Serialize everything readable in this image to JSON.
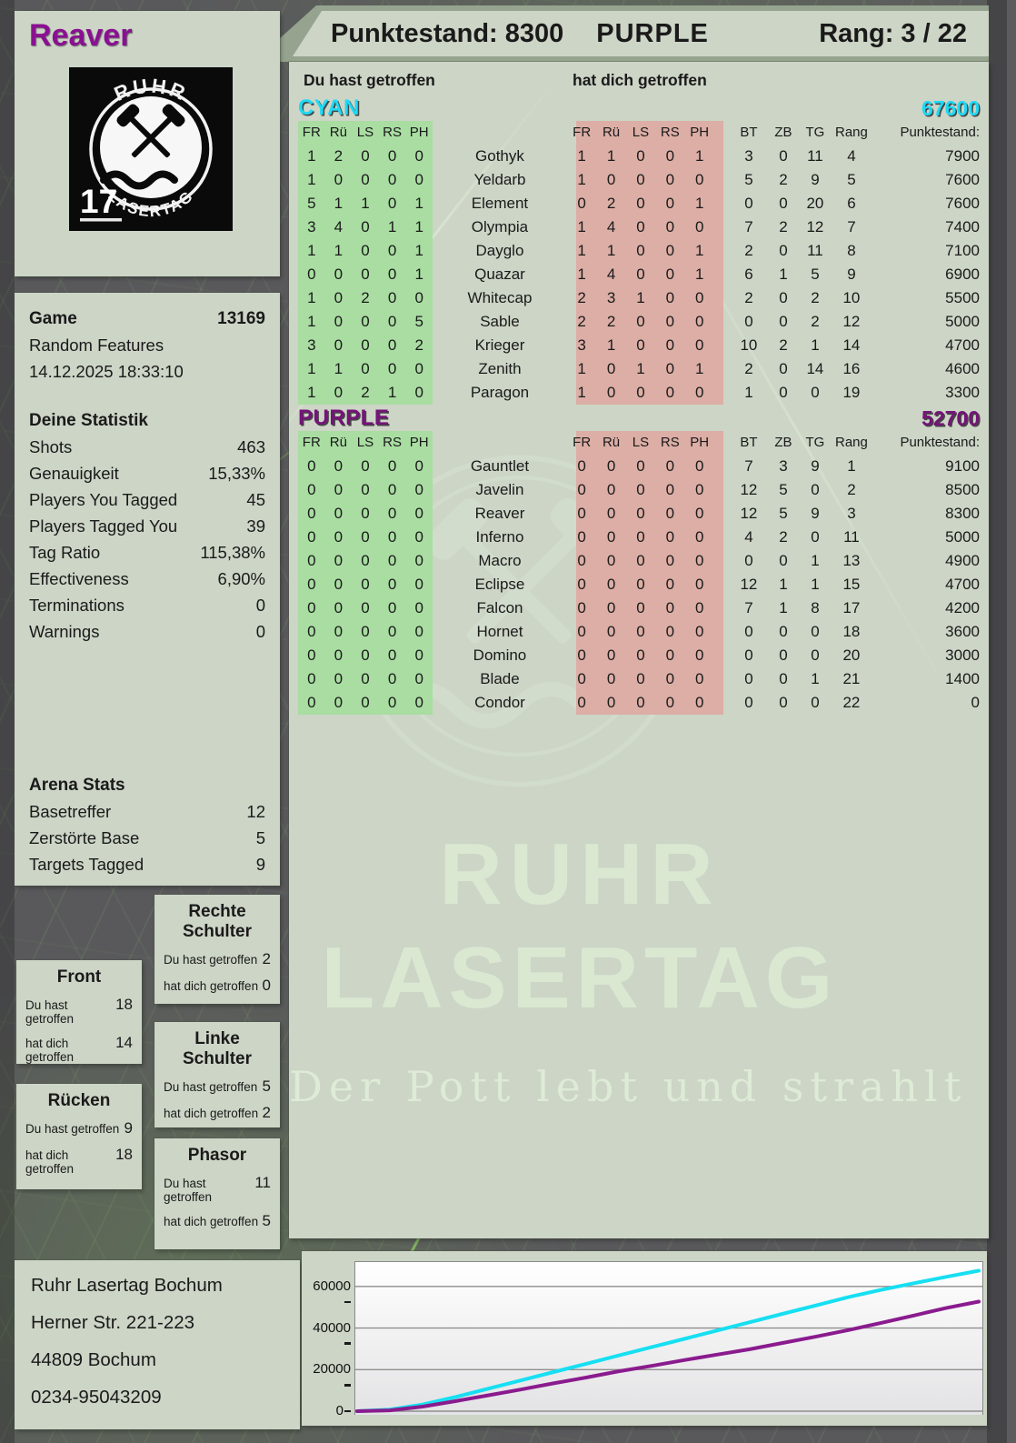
{
  "header": {
    "punktestand": "Punktestand: 8300",
    "team": "PURPLE",
    "rang": "Rang: 3 / 22"
  },
  "player": {
    "name": "Reaver"
  },
  "logo": {
    "arc_top": "RUHR",
    "arc_bottom": "LASERTAG",
    "badge": "17"
  },
  "hit_headers": {
    "left": "Du hast getroffen",
    "right": "hat dich getroffen"
  },
  "table": {
    "hit_cols": [
      "FR",
      "Rü",
      "LS",
      "RS",
      "PH"
    ],
    "stat_cols": [
      "BT",
      "ZB",
      "TG",
      "Rang",
      "Punktestand:"
    ]
  },
  "teams": [
    {
      "name": "CYAN",
      "score": "67600",
      "color": "#1fd9f6",
      "rows": [
        {
          "name": "Gothyk",
          "given": [
            "1",
            "2",
            "0",
            "0",
            "0"
          ],
          "taken": [
            "1",
            "1",
            "0",
            "0",
            "1"
          ],
          "bt": "3",
          "zb": "0",
          "tg": "11",
          "rang": "4",
          "punkte": "7900"
        },
        {
          "name": "Yeldarb",
          "given": [
            "1",
            "0",
            "0",
            "0",
            "0"
          ],
          "taken": [
            "1",
            "0",
            "0",
            "0",
            "0"
          ],
          "bt": "5",
          "zb": "2",
          "tg": "9",
          "rang": "5",
          "punkte": "7600"
        },
        {
          "name": "Element",
          "given": [
            "5",
            "1",
            "1",
            "0",
            "1"
          ],
          "taken": [
            "0",
            "2",
            "0",
            "0",
            "1"
          ],
          "bt": "0",
          "zb": "0",
          "tg": "20",
          "rang": "6",
          "punkte": "7600"
        },
        {
          "name": "Olympia",
          "given": [
            "3",
            "4",
            "0",
            "1",
            "1"
          ],
          "taken": [
            "1",
            "4",
            "0",
            "0",
            "0"
          ],
          "bt": "7",
          "zb": "2",
          "tg": "12",
          "rang": "7",
          "punkte": "7400"
        },
        {
          "name": "Dayglo",
          "given": [
            "1",
            "1",
            "0",
            "0",
            "1"
          ],
          "taken": [
            "1",
            "1",
            "0",
            "0",
            "1"
          ],
          "bt": "2",
          "zb": "0",
          "tg": "11",
          "rang": "8",
          "punkte": "7100"
        },
        {
          "name": "Quazar",
          "given": [
            "0",
            "0",
            "0",
            "0",
            "1"
          ],
          "taken": [
            "1",
            "4",
            "0",
            "0",
            "1"
          ],
          "bt": "6",
          "zb": "1",
          "tg": "5",
          "rang": "9",
          "punkte": "6900"
        },
        {
          "name": "Whitecap",
          "given": [
            "1",
            "0",
            "2",
            "0",
            "0"
          ],
          "taken": [
            "2",
            "3",
            "1",
            "0",
            "0"
          ],
          "bt": "2",
          "zb": "0",
          "tg": "2",
          "rang": "10",
          "punkte": "5500"
        },
        {
          "name": "Sable",
          "given": [
            "1",
            "0",
            "0",
            "0",
            "5"
          ],
          "taken": [
            "2",
            "2",
            "0",
            "0",
            "0"
          ],
          "bt": "0",
          "zb": "0",
          "tg": "2",
          "rang": "12",
          "punkte": "5000"
        },
        {
          "name": "Krieger",
          "given": [
            "3",
            "0",
            "0",
            "0",
            "2"
          ],
          "taken": [
            "3",
            "1",
            "0",
            "0",
            "0"
          ],
          "bt": "10",
          "zb": "2",
          "tg": "1",
          "rang": "14",
          "punkte": "4700"
        },
        {
          "name": "Zenith",
          "given": [
            "1",
            "1",
            "0",
            "0",
            "0"
          ],
          "taken": [
            "1",
            "0",
            "1",
            "0",
            "1"
          ],
          "bt": "2",
          "zb": "0",
          "tg": "14",
          "rang": "16",
          "punkte": "4600"
        },
        {
          "name": "Paragon",
          "given": [
            "1",
            "0",
            "2",
            "1",
            "0"
          ],
          "taken": [
            "1",
            "0",
            "0",
            "0",
            "0"
          ],
          "bt": "1",
          "zb": "0",
          "tg": "0",
          "rang": "19",
          "punkte": "3300"
        }
      ]
    },
    {
      "name": "PURPLE",
      "score": "52700",
      "color": "#741478",
      "rows": [
        {
          "name": "Gauntlet",
          "given": [
            "0",
            "0",
            "0",
            "0",
            "0"
          ],
          "taken": [
            "0",
            "0",
            "0",
            "0",
            "0"
          ],
          "bt": "7",
          "zb": "3",
          "tg": "9",
          "rang": "1",
          "punkte": "9100"
        },
        {
          "name": "Javelin",
          "given": [
            "0",
            "0",
            "0",
            "0",
            "0"
          ],
          "taken": [
            "0",
            "0",
            "0",
            "0",
            "0"
          ],
          "bt": "12",
          "zb": "5",
          "tg": "0",
          "rang": "2",
          "punkte": "8500"
        },
        {
          "name": "Reaver",
          "given": [
            "0",
            "0",
            "0",
            "0",
            "0"
          ],
          "taken": [
            "0",
            "0",
            "0",
            "0",
            "0"
          ],
          "bt": "12",
          "zb": "5",
          "tg": "9",
          "rang": "3",
          "punkte": "8300"
        },
        {
          "name": "Inferno",
          "given": [
            "0",
            "0",
            "0",
            "0",
            "0"
          ],
          "taken": [
            "0",
            "0",
            "0",
            "0",
            "0"
          ],
          "bt": "4",
          "zb": "2",
          "tg": "0",
          "rang": "11",
          "punkte": "5000"
        },
        {
          "name": "Macro",
          "given": [
            "0",
            "0",
            "0",
            "0",
            "0"
          ],
          "taken": [
            "0",
            "0",
            "0",
            "0",
            "0"
          ],
          "bt": "0",
          "zb": "0",
          "tg": "1",
          "rang": "13",
          "punkte": "4900"
        },
        {
          "name": "Eclipse",
          "given": [
            "0",
            "0",
            "0",
            "0",
            "0"
          ],
          "taken": [
            "0",
            "0",
            "0",
            "0",
            "0"
          ],
          "bt": "12",
          "zb": "1",
          "tg": "1",
          "rang": "15",
          "punkte": "4700"
        },
        {
          "name": "Falcon",
          "given": [
            "0",
            "0",
            "0",
            "0",
            "0"
          ],
          "taken": [
            "0",
            "0",
            "0",
            "0",
            "0"
          ],
          "bt": "7",
          "zb": "1",
          "tg": "8",
          "rang": "17",
          "punkte": "4200"
        },
        {
          "name": "Hornet",
          "given": [
            "0",
            "0",
            "0",
            "0",
            "0"
          ],
          "taken": [
            "0",
            "0",
            "0",
            "0",
            "0"
          ],
          "bt": "0",
          "zb": "0",
          "tg": "0",
          "rang": "18",
          "punkte": "3600"
        },
        {
          "name": "Domino",
          "given": [
            "0",
            "0",
            "0",
            "0",
            "0"
          ],
          "taken": [
            "0",
            "0",
            "0",
            "0",
            "0"
          ],
          "bt": "0",
          "zb": "0",
          "tg": "0",
          "rang": "20",
          "punkte": "3000"
        },
        {
          "name": "Blade",
          "given": [
            "0",
            "0",
            "0",
            "0",
            "0"
          ],
          "taken": [
            "0",
            "0",
            "0",
            "0",
            "0"
          ],
          "bt": "0",
          "zb": "0",
          "tg": "1",
          "rang": "21",
          "punkte": "1400"
        },
        {
          "name": "Condor",
          "given": [
            "0",
            "0",
            "0",
            "0",
            "0"
          ],
          "taken": [
            "0",
            "0",
            "0",
            "0",
            "0"
          ],
          "bt": "0",
          "zb": "0",
          "tg": "0",
          "rang": "22",
          "punkte": "0"
        }
      ]
    }
  ],
  "game": {
    "label": "Game",
    "number": "13169",
    "mode": "Random Features",
    "datetime": "14.12.2025 18:33:10"
  },
  "your_stats": {
    "title": "Deine Statistik",
    "rows": [
      {
        "label": "Shots",
        "value": "463"
      },
      {
        "label": "Genauigkeit",
        "value": "15,33%"
      },
      {
        "label": "Players You Tagged",
        "value": "45"
      },
      {
        "label": "Players Tagged You",
        "value": "39"
      },
      {
        "label": "Tag Ratio",
        "value": "115,38%"
      },
      {
        "label": "Effectiveness",
        "value": "6,90%"
      },
      {
        "label": "Terminations",
        "value": "0"
      },
      {
        "label": "Warnings",
        "value": "0"
      }
    ]
  },
  "arena_stats": {
    "title": "Arena Stats",
    "rows": [
      {
        "label": "Basetreffer",
        "value": "12"
      },
      {
        "label": "Zerstörte Base",
        "value": "5"
      },
      {
        "label": "Targets Tagged",
        "value": "9"
      }
    ]
  },
  "hitboxes": {
    "given_label": "Du hast getroffen",
    "taken_label": "hat dich getroffen",
    "boxes": [
      {
        "id": "front",
        "title": "Front",
        "given": "18",
        "taken": "14"
      },
      {
        "id": "ruecken",
        "title": "Rücken",
        "given": "9",
        "taken": "18"
      },
      {
        "id": "rechte-schulter",
        "title": "Rechte Schulter",
        "given": "2",
        "taken": "0"
      },
      {
        "id": "linke-schulter",
        "title": "Linke Schulter",
        "given": "5",
        "taken": "2"
      },
      {
        "id": "phasor",
        "title": "Phasor",
        "given": "11",
        "taken": "5"
      }
    ]
  },
  "address": {
    "lines": [
      "Ruhr Lasertag Bochum",
      "Herner Str. 221-223",
      "44809 Bochum",
      "0234-95043209"
    ]
  },
  "watermark": {
    "line1": "RUHR",
    "line2": "LASERTAG",
    "line3": "Der Pott lebt und strahlt"
  },
  "chart_data": {
    "type": "line",
    "title": "",
    "xlabel": "",
    "ylabel": "",
    "ylim": [
      0,
      70000
    ],
    "yticks": [
      0,
      20000,
      40000,
      60000
    ],
    "ytick_labels": [
      "0",
      "20000",
      "40000",
      "60000"
    ],
    "grid": true,
    "legend_position": "none",
    "series": [
      {
        "name": "CYAN",
        "color": "#17dff2",
        "values": [
          0,
          800,
          3200,
          6800,
          10800,
          14800,
          18800,
          22800,
          26800,
          30800,
          34800,
          38800,
          42800,
          46800,
          50800,
          54800,
          58300,
          61500,
          64600,
          67600
        ]
      },
      {
        "name": "PURPLE",
        "color": "#8a1b8e",
        "values": [
          0,
          400,
          2200,
          4800,
          7600,
          10400,
          13400,
          16200,
          19200,
          21800,
          24600,
          27200,
          29800,
          32800,
          35800,
          39000,
          42400,
          46000,
          49600,
          52700
        ]
      }
    ]
  }
}
